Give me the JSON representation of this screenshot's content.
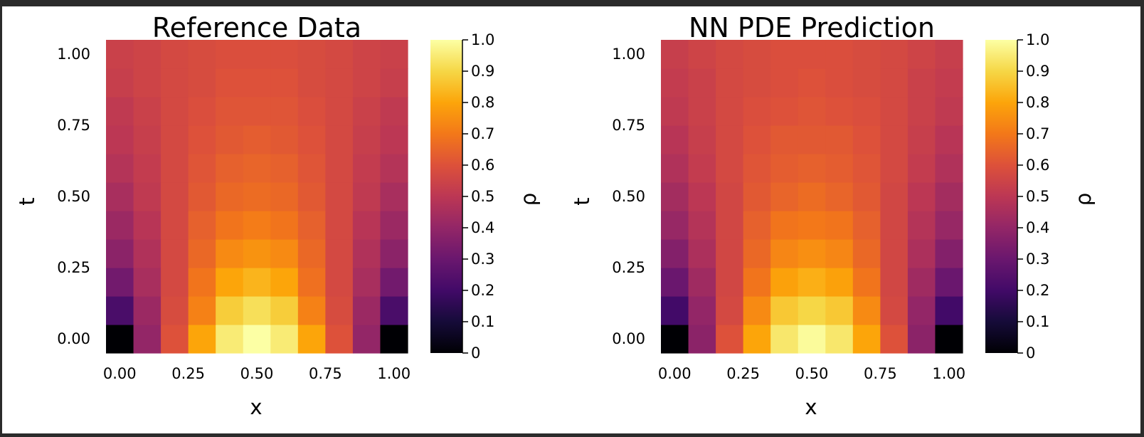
{
  "chart_data": [
    {
      "type": "heatmap",
      "title": "Reference Data",
      "xlabel": "x",
      "ylabel": "t",
      "colorbar_label": "ρ",
      "colormap": "inferno",
      "x_centers": [
        0.0,
        0.1,
        0.2,
        0.3,
        0.4,
        0.5,
        0.6,
        0.7,
        0.8,
        0.9,
        1.0
      ],
      "y_centers": [
        0.0,
        0.1,
        0.2,
        0.3,
        0.4,
        0.5,
        0.6,
        0.7,
        0.8,
        0.9,
        1.0
      ],
      "xlim": [
        -0.05,
        1.05
      ],
      "ylim": [
        -0.05,
        1.05
      ],
      "x_ticks": [
        0.0,
        0.25,
        0.5,
        0.75,
        1.0
      ],
      "x_tick_labels": [
        "0.00",
        "0.25",
        "0.50",
        "0.75",
        "1.00"
      ],
      "y_ticks": [
        0.0,
        0.25,
        0.5,
        0.75,
        1.0
      ],
      "y_tick_labels": [
        "0.00",
        "0.25",
        "0.50",
        "0.75",
        "1.00"
      ],
      "clim": [
        0,
        1
      ],
      "colorbar_ticks": [
        0,
        0.1,
        0.2,
        0.3,
        0.4,
        0.5,
        0.6,
        0.7,
        0.8,
        0.9,
        1.0
      ],
      "colorbar_tick_labels": [
        "0",
        "0.1",
        "0.2",
        "0.3",
        "0.4",
        "0.5",
        "0.6",
        "0.7",
        "0.8",
        "0.9",
        "1.0"
      ],
      "values": [
        [
          0.0,
          0.4,
          0.6,
          0.8,
          0.95,
          1.0,
          0.95,
          0.8,
          0.6,
          0.4,
          0.0
        ],
        [
          0.22,
          0.42,
          0.58,
          0.72,
          0.88,
          0.92,
          0.88,
          0.72,
          0.58,
          0.42,
          0.22
        ],
        [
          0.32,
          0.45,
          0.57,
          0.69,
          0.8,
          0.83,
          0.8,
          0.68,
          0.57,
          0.45,
          0.32
        ],
        [
          0.38,
          0.47,
          0.57,
          0.66,
          0.74,
          0.76,
          0.74,
          0.66,
          0.57,
          0.47,
          0.38
        ],
        [
          0.42,
          0.49,
          0.57,
          0.64,
          0.69,
          0.71,
          0.69,
          0.64,
          0.57,
          0.49,
          0.42
        ],
        [
          0.45,
          0.51,
          0.57,
          0.62,
          0.66,
          0.67,
          0.66,
          0.62,
          0.57,
          0.51,
          0.45
        ],
        [
          0.48,
          0.52,
          0.57,
          0.61,
          0.64,
          0.65,
          0.64,
          0.61,
          0.57,
          0.52,
          0.48
        ],
        [
          0.5,
          0.53,
          0.57,
          0.6,
          0.62,
          0.63,
          0.62,
          0.6,
          0.57,
          0.53,
          0.5
        ],
        [
          0.51,
          0.54,
          0.57,
          0.59,
          0.61,
          0.61,
          0.61,
          0.59,
          0.57,
          0.54,
          0.51
        ],
        [
          0.53,
          0.55,
          0.57,
          0.58,
          0.6,
          0.6,
          0.6,
          0.58,
          0.57,
          0.55,
          0.53
        ],
        [
          0.54,
          0.55,
          0.57,
          0.58,
          0.59,
          0.59,
          0.59,
          0.58,
          0.57,
          0.55,
          0.54
        ]
      ]
    },
    {
      "type": "heatmap",
      "title": "NN PDE Prediction",
      "xlabel": "x",
      "ylabel": "t",
      "colorbar_label": "ρ",
      "colormap": "inferno",
      "x_centers": [
        0.0,
        0.1,
        0.2,
        0.3,
        0.4,
        0.5,
        0.6,
        0.7,
        0.8,
        0.9,
        1.0
      ],
      "y_centers": [
        0.0,
        0.1,
        0.2,
        0.3,
        0.4,
        0.5,
        0.6,
        0.7,
        0.8,
        0.9,
        1.0
      ],
      "xlim": [
        -0.05,
        1.05
      ],
      "ylim": [
        -0.05,
        1.05
      ],
      "x_ticks": [
        0.0,
        0.25,
        0.5,
        0.75,
        1.0
      ],
      "x_tick_labels": [
        "0.00",
        "0.25",
        "0.50",
        "0.75",
        "1.00"
      ],
      "y_ticks": [
        0.0,
        0.25,
        0.5,
        0.75,
        1.0
      ],
      "y_tick_labels": [
        "0.00",
        "0.25",
        "0.50",
        "0.75",
        "1.00"
      ],
      "clim": [
        0,
        1
      ],
      "colorbar_ticks": [
        0,
        0.1,
        0.2,
        0.3,
        0.4,
        0.5,
        0.6,
        0.7,
        0.8,
        0.9,
        1.0
      ],
      "colorbar_tick_labels": [
        "0",
        "0.1",
        "0.2",
        "0.3",
        "0.4",
        "0.5",
        "0.6",
        "0.7",
        "0.8",
        "0.9",
        "1.0"
      ],
      "values": [
        [
          0.0,
          0.38,
          0.6,
          0.8,
          0.94,
          0.99,
          0.94,
          0.8,
          0.6,
          0.38,
          0.0
        ],
        [
          0.2,
          0.4,
          0.57,
          0.74,
          0.87,
          0.9,
          0.87,
          0.74,
          0.57,
          0.4,
          0.2
        ],
        [
          0.3,
          0.43,
          0.56,
          0.69,
          0.79,
          0.82,
          0.79,
          0.69,
          0.56,
          0.43,
          0.3
        ],
        [
          0.36,
          0.46,
          0.56,
          0.66,
          0.73,
          0.75,
          0.73,
          0.66,
          0.56,
          0.46,
          0.36
        ],
        [
          0.41,
          0.48,
          0.56,
          0.64,
          0.69,
          0.7,
          0.69,
          0.64,
          0.56,
          0.48,
          0.41
        ],
        [
          0.44,
          0.5,
          0.56,
          0.62,
          0.65,
          0.67,
          0.65,
          0.62,
          0.56,
          0.5,
          0.44
        ],
        [
          0.47,
          0.52,
          0.57,
          0.61,
          0.63,
          0.64,
          0.63,
          0.61,
          0.57,
          0.52,
          0.47
        ],
        [
          0.49,
          0.53,
          0.57,
          0.6,
          0.62,
          0.62,
          0.62,
          0.6,
          0.57,
          0.53,
          0.49
        ],
        [
          0.51,
          0.54,
          0.57,
          0.59,
          0.6,
          0.61,
          0.6,
          0.59,
          0.57,
          0.54,
          0.51
        ],
        [
          0.52,
          0.54,
          0.57,
          0.58,
          0.59,
          0.6,
          0.59,
          0.58,
          0.57,
          0.54,
          0.52
        ],
        [
          0.53,
          0.55,
          0.57,
          0.58,
          0.59,
          0.59,
          0.59,
          0.58,
          0.57,
          0.55,
          0.53
        ]
      ]
    }
  ]
}
